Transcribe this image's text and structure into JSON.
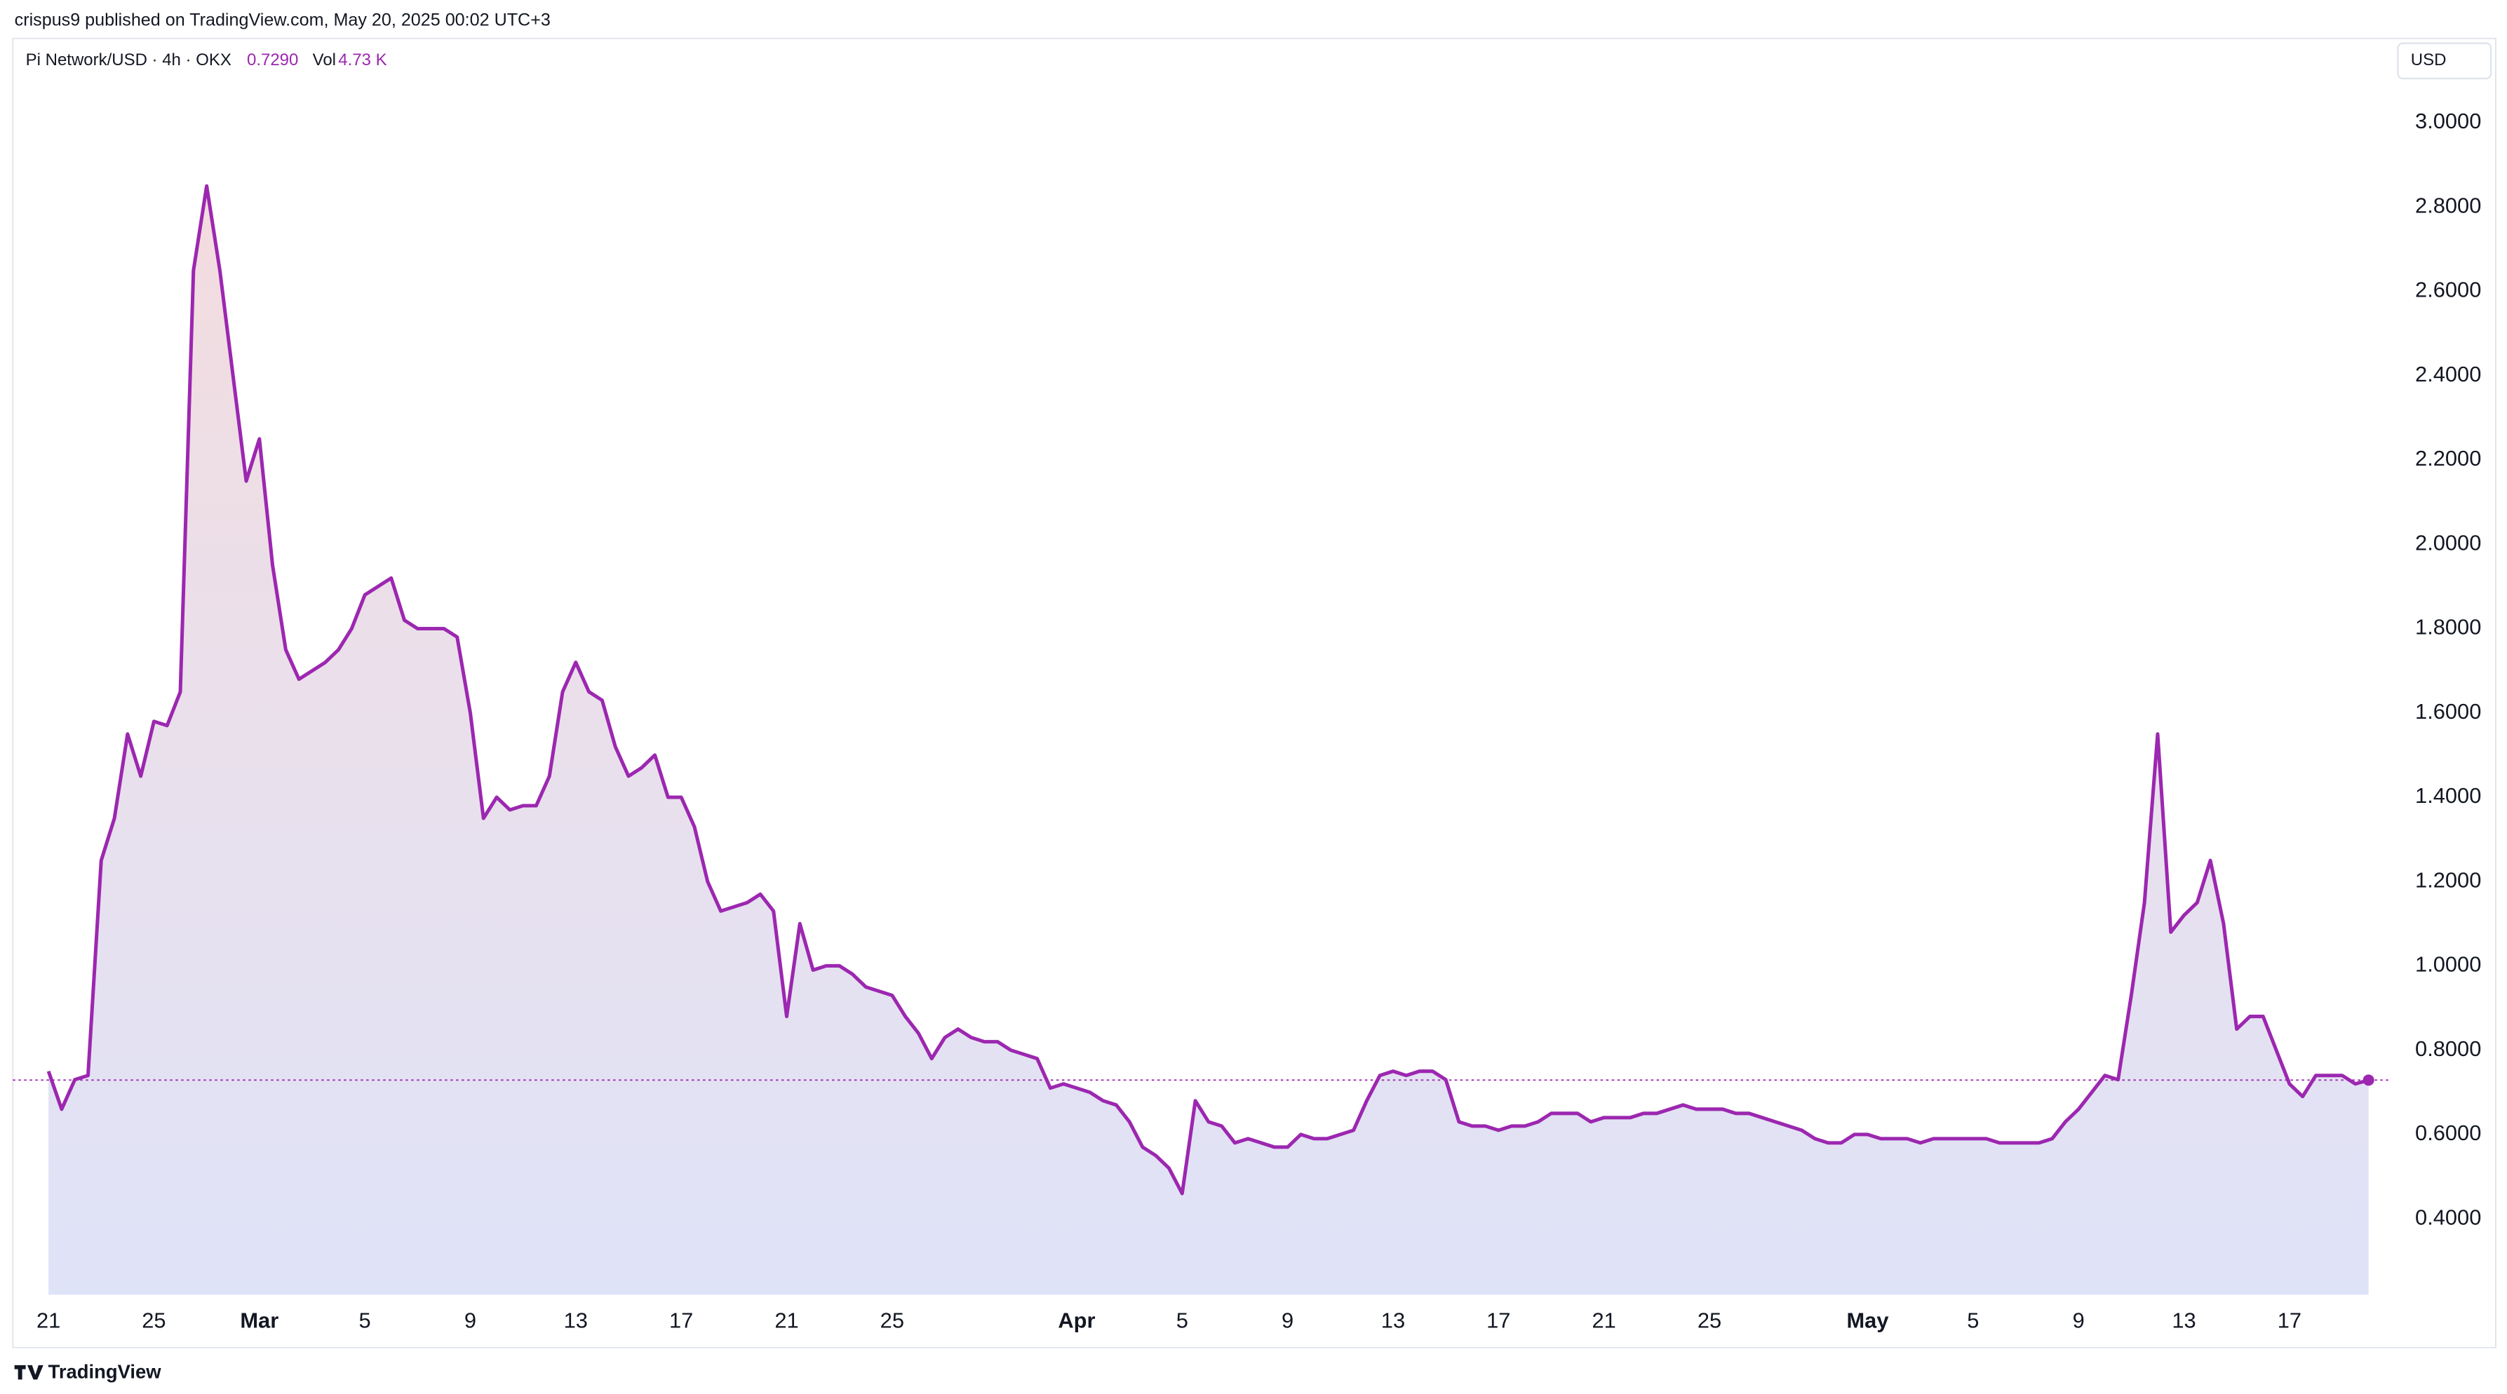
{
  "header": {
    "published": "crispus9 published on TradingView.com, May 20, 2025 00:02 UTC+3",
    "symbol": "Pi Network/USD · 4h · OKX",
    "last": "0.7290",
    "vol_label": "Vol",
    "vol_value": "4.73 K",
    "currency": "USD"
  },
  "footer": {
    "brand": "TradingView"
  },
  "chart_data": {
    "type": "area",
    "color": "#9c27b0",
    "fill_top": "#f3dcdf",
    "fill_bottom": "#dfe3f8",
    "price_line": true,
    "values": [
      0.75,
      0.66,
      0.73,
      0.74,
      1.25,
      1.35,
      1.55,
      1.45,
      1.58,
      1.57,
      1.65,
      2.65,
      2.85,
      2.65,
      2.4,
      2.15,
      2.25,
      1.95,
      1.75,
      1.68,
      1.7,
      1.72,
      1.75,
      1.8,
      1.88,
      1.9,
      1.92,
      1.82,
      1.8,
      1.8,
      1.8,
      1.78,
      1.6,
      1.35,
      1.4,
      1.37,
      1.38,
      1.38,
      1.45,
      1.65,
      1.72,
      1.65,
      1.63,
      1.52,
      1.45,
      1.47,
      1.5,
      1.4,
      1.4,
      1.33,
      1.2,
      1.13,
      1.14,
      1.15,
      1.17,
      1.13,
      0.88,
      1.1,
      0.99,
      1.0,
      1.0,
      0.98,
      0.95,
      0.94,
      0.93,
      0.88,
      0.84,
      0.78,
      0.83,
      0.85,
      0.83,
      0.82,
      0.82,
      0.8,
      0.79,
      0.78,
      0.71,
      0.72,
      0.71,
      0.7,
      0.68,
      0.67,
      0.63,
      0.57,
      0.55,
      0.52,
      0.46,
      0.68,
      0.63,
      0.62,
      0.58,
      0.59,
      0.58,
      0.57,
      0.57,
      0.6,
      0.59,
      0.59,
      0.6,
      0.61,
      0.68,
      0.74,
      0.75,
      0.74,
      0.75,
      0.75,
      0.73,
      0.63,
      0.62,
      0.62,
      0.61,
      0.62,
      0.62,
      0.63,
      0.65,
      0.65,
      0.65,
      0.63,
      0.64,
      0.64,
      0.64,
      0.65,
      0.65,
      0.66,
      0.67,
      0.66,
      0.66,
      0.66,
      0.65,
      0.65,
      0.64,
      0.63,
      0.62,
      0.61,
      0.59,
      0.58,
      0.58,
      0.6,
      0.6,
      0.59,
      0.59,
      0.59,
      0.58,
      0.59,
      0.59,
      0.59,
      0.59,
      0.59,
      0.58,
      0.58,
      0.58,
      0.58,
      0.59,
      0.63,
      0.66,
      0.7,
      0.74,
      0.73,
      0.93,
      1.15,
      1.55,
      1.08,
      1.12,
      1.15,
      1.25,
      1.1,
      0.85,
      0.88,
      0.88,
      0.8,
      0.72,
      0.69,
      0.74,
      0.74,
      0.74,
      0.72,
      0.729
    ],
    "xlim": [
      -2.7,
      177.5
    ],
    "xticks": [
      {
        "value": 0,
        "label": "21"
      },
      {
        "value": 8,
        "label": "25"
      },
      {
        "value": 16,
        "label": "Mar"
      },
      {
        "value": 24,
        "label": "5"
      },
      {
        "value": 32,
        "label": "9"
      },
      {
        "value": 40,
        "label": "13"
      },
      {
        "value": 48,
        "label": "17"
      },
      {
        "value": 56,
        "label": "21"
      },
      {
        "value": 64,
        "label": "25"
      },
      {
        "value": 78,
        "label": "Apr"
      },
      {
        "value": 86,
        "label": "5"
      },
      {
        "value": 94,
        "label": "9"
      },
      {
        "value": 102,
        "label": "13"
      },
      {
        "value": 110,
        "label": "17"
      },
      {
        "value": 118,
        "label": "21"
      },
      {
        "value": 126,
        "label": "25"
      },
      {
        "value": 138,
        "label": "May"
      },
      {
        "value": 146,
        "label": "5"
      },
      {
        "value": 154,
        "label": "9"
      },
      {
        "value": 162,
        "label": "13"
      },
      {
        "value": 170,
        "label": "17"
      }
    ],
    "ylim": [
      0.22,
      3.2
    ],
    "yticks": [
      {
        "value": 0.4,
        "label": "0.4000"
      },
      {
        "value": 0.6,
        "label": "0.6000"
      },
      {
        "value": 0.8,
        "label": "0.8000"
      },
      {
        "value": 1,
        "label": "1.0000"
      },
      {
        "value": 1.2,
        "label": "1.2000"
      },
      {
        "value": 1.4,
        "label": "1.4000"
      },
      {
        "value": 1.6,
        "label": "1.6000"
      },
      {
        "value": 1.8,
        "label": "1.8000"
      },
      {
        "value": 2,
        "label": "2.0000"
      },
      {
        "value": 2.2,
        "label": "2.2000"
      },
      {
        "value": 2.4,
        "label": "2.4000"
      },
      {
        "value": 2.6,
        "label": "2.6000"
      },
      {
        "value": 2.8,
        "label": "2.8000"
      },
      {
        "value": 3,
        "label": "3.0000"
      }
    ]
  }
}
